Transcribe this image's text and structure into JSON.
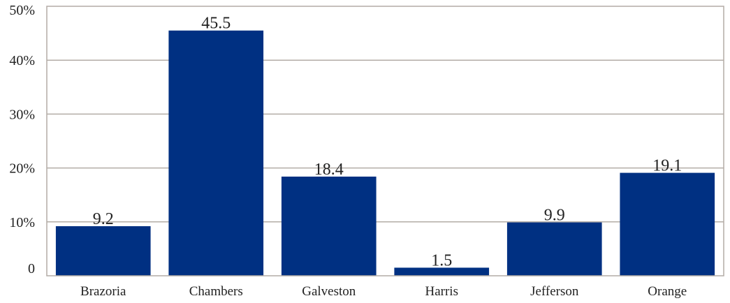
{
  "chart_data": {
    "type": "bar",
    "categories": [
      "Brazoria",
      "Chambers",
      "Galveston",
      "Harris",
      "Jefferson",
      "Orange"
    ],
    "values": [
      9.2,
      45.5,
      18.4,
      1.5,
      9.9,
      19.1
    ],
    "data_labels": [
      "9.2",
      "45.5",
      "18.4",
      "1.5",
      "9.9",
      "19.1"
    ],
    "yticks": [
      0,
      10,
      20,
      30,
      40,
      50
    ],
    "ytick_labels": [
      "0",
      "10%",
      "20%",
      "30%",
      "40%",
      "50%"
    ],
    "ylim": [
      0,
      50
    ],
    "grid": true,
    "legend": "none",
    "colors": {
      "bar": "#003082",
      "grid": "#b3aca6"
    }
  }
}
